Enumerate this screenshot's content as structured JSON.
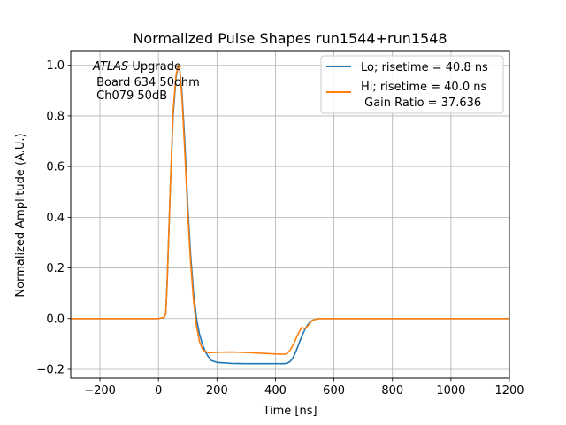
{
  "chart_data": {
    "type": "line",
    "title": "Normalized Pulse Shapes run1544+run1548",
    "xlabel": "Time [ns]",
    "ylabel": "Normalized Amplitude (A.U.)",
    "xlim": [
      -300,
      1200
    ],
    "ylim": [
      -0.235,
      1.055
    ],
    "xticks": [
      -200,
      0,
      200,
      400,
      600,
      800,
      1000,
      1200
    ],
    "xtick_labels": [
      "−200",
      "0",
      "200",
      "400",
      "600",
      "800",
      "1000",
      "1200"
    ],
    "yticks": [
      -0.2,
      0.0,
      0.2,
      0.4,
      0.6,
      0.8,
      1.0
    ],
    "ytick_labels": [
      "−0.2",
      "0.0",
      "0.2",
      "0.4",
      "0.6",
      "0.8",
      "1.0"
    ],
    "grid": true,
    "legend_position": "top-right",
    "annotation": {
      "atlas": "ATLAS",
      "line1_rest": " Upgrade",
      "line2": " Board 634 50ohm",
      "line3": " Ch079 50dB"
    },
    "series": [
      {
        "name": "Lo; risetime = 40.8 ns",
        "color": "#1f77b4",
        "x": [
          -300,
          -200,
          -100,
          0,
          20,
          25,
          30,
          40,
          50,
          60,
          68,
          72,
          80,
          90,
          100,
          110,
          120,
          130,
          140,
          150,
          160,
          170,
          180,
          200,
          250,
          300,
          350,
          400,
          430,
          440,
          450,
          460,
          470,
          480,
          490,
          500,
          510,
          520,
          530,
          550,
          600,
          700,
          800,
          900,
          1000,
          1100,
          1200
        ],
        "y": [
          0.0,
          0.0,
          0.0,
          0.0,
          0.005,
          0.02,
          0.15,
          0.5,
          0.8,
          0.95,
          1.0,
          0.99,
          0.9,
          0.7,
          0.45,
          0.25,
          0.1,
          0.0,
          -0.06,
          -0.1,
          -0.13,
          -0.15,
          -0.165,
          -0.173,
          -0.177,
          -0.178,
          -0.178,
          -0.178,
          -0.178,
          -0.176,
          -0.17,
          -0.155,
          -0.13,
          -0.1,
          -0.07,
          -0.045,
          -0.025,
          -0.012,
          -0.005,
          0.0,
          0.0,
          0.0,
          0.0,
          0.0,
          0.0,
          0.0,
          0.0
        ]
      },
      {
        "name": "Hi; risetime = 40.0 ns\n Gain Ratio = 37.636",
        "name_line1": "Hi; risetime = 40.0 ns",
        "name_line2": " Gain Ratio = 37.636",
        "color": "#ff7f0e",
        "x": [
          -300,
          -200,
          -100,
          0,
          20,
          25,
          30,
          40,
          50,
          60,
          68,
          72,
          80,
          90,
          100,
          110,
          120,
          130,
          140,
          150,
          160,
          170,
          200,
          250,
          300,
          350,
          400,
          430,
          440,
          450,
          460,
          470,
          480,
          490,
          500,
          510,
          520,
          530,
          550,
          600,
          700,
          800,
          900,
          1000,
          1100,
          1200
        ],
        "y": [
          0.0,
          0.0,
          0.0,
          0.0,
          0.005,
          0.02,
          0.15,
          0.5,
          0.82,
          0.96,
          1.0,
          0.99,
          0.88,
          0.66,
          0.42,
          0.22,
          0.07,
          -0.03,
          -0.09,
          -0.12,
          -0.13,
          -0.135,
          -0.133,
          -0.132,
          -0.134,
          -0.137,
          -0.14,
          -0.141,
          -0.138,
          -0.125,
          -0.105,
          -0.08,
          -0.055,
          -0.035,
          -0.04,
          -0.03,
          -0.015,
          -0.005,
          0.0,
          0.0,
          0.0,
          0.0,
          0.0,
          0.0,
          0.0,
          0.0
        ]
      }
    ]
  }
}
